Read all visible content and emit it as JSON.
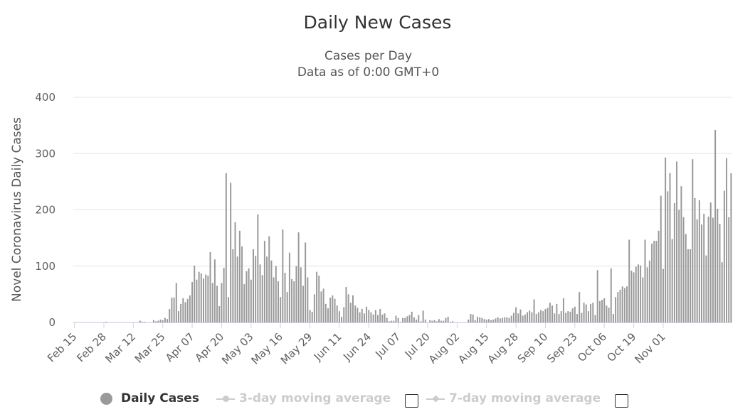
{
  "chart_data": {
    "type": "bar",
    "title": "Daily New Cases",
    "subtitle_line1": "Cases per Day",
    "subtitle_line2": "Data as of 0:00 GMT+0",
    "ylabel": "Novel Coronavirus Daily Cases",
    "xlabel": "",
    "ylim": [
      0,
      400
    ],
    "yticks": [
      "0",
      "100",
      "200",
      "300",
      "400"
    ],
    "ytick_values": [
      0,
      100,
      200,
      300,
      400
    ],
    "start_date": "Feb 15",
    "x_tick_labels": [
      "Feb 15",
      "Feb 28",
      "Mar 12",
      "Mar 25",
      "Apr 07",
      "Apr 20",
      "May 03",
      "May 16",
      "May 29",
      "Jun 11",
      "Jun 24",
      "Jul 07",
      "Jul 20",
      "Aug 02",
      "Aug 15",
      "Aug 28",
      "Sep 10",
      "Sep 23",
      "Oct 06",
      "Oct 19",
      "Nov 01"
    ],
    "x_tick_interval_days": 13,
    "series": [
      {
        "name": "Daily Cases",
        "color": "#999999",
        "values": [
          0,
          0,
          0,
          0,
          0,
          0,
          0,
          0,
          0,
          0,
          0,
          0,
          0,
          0,
          1,
          0,
          0,
          0,
          0,
          0,
          0,
          0,
          0,
          0,
          0,
          0,
          0,
          0,
          0,
          3,
          1,
          1,
          0,
          0,
          0,
          4,
          2,
          3,
          5,
          4,
          8,
          6,
          24,
          44,
          44,
          70,
          20,
          33,
          43,
          36,
          42,
          48,
          72,
          101,
          76,
          90,
          87,
          78,
          85,
          83,
          125,
          70,
          112,
          65,
          29,
          70,
          97,
          265,
          45,
          248,
          130,
          178,
          117,
          163,
          135,
          68,
          91,
          96,
          76,
          130,
          118,
          192,
          103,
          84,
          145,
          117,
          153,
          110,
          80,
          100,
          73,
          45,
          165,
          88,
          54,
          124,
          77,
          73,
          100,
          160,
          98,
          65,
          142,
          80,
          22,
          19,
          50,
          90,
          83,
          55,
          60,
          33,
          25,
          44,
          48,
          42,
          30,
          20,
          10,
          27,
          63,
          50,
          35,
          48,
          30,
          26,
          18,
          24,
          16,
          28,
          22,
          18,
          14,
          22,
          13,
          24,
          14,
          16,
          8,
          2,
          3,
          3,
          12,
          8,
          1,
          8,
          8,
          11,
          13,
          19,
          9,
          5,
          13,
          2,
          21,
          5,
          0,
          4,
          3,
          4,
          2,
          6,
          3,
          3,
          8,
          10,
          1,
          2,
          0,
          0,
          0,
          0,
          0,
          0,
          5,
          15,
          14,
          4,
          10,
          9,
          8,
          6,
          5,
          6,
          4,
          5,
          7,
          9,
          7,
          8,
          9,
          9,
          8,
          12,
          17,
          27,
          16,
          23,
          12,
          14,
          18,
          21,
          18,
          41,
          15,
          18,
          22,
          20,
          24,
          26,
          35,
          30,
          16,
          33,
          15,
          20,
          43,
          17,
          20,
          19,
          25,
          28,
          15,
          54,
          17,
          35,
          32,
          20,
          33,
          35,
          13,
          93,
          38,
          40,
          43,
          30,
          26,
          96,
          15,
          45,
          54,
          58,
          64,
          61,
          64,
          147,
          92,
          89,
          99,
          103,
          101,
          80,
          147,
          98,
          110,
          140,
          145,
          145,
          163,
          225,
          95,
          293,
          233,
          265,
          148,
          212,
          286,
          200,
          242,
          187,
          157,
          130,
          130,
          290,
          221,
          183,
          217,
          174,
          193,
          119,
          188,
          213,
          186,
          342,
          202,
          175,
          107,
          234,
          292,
          187,
          265
        ]
      }
    ],
    "legend": [
      {
        "label": "Daily Cases",
        "state": "visible"
      },
      {
        "label": "3-day moving average",
        "state": "hidden"
      },
      {
        "label": "7-day moving average",
        "state": "hidden"
      }
    ],
    "grid": true
  }
}
